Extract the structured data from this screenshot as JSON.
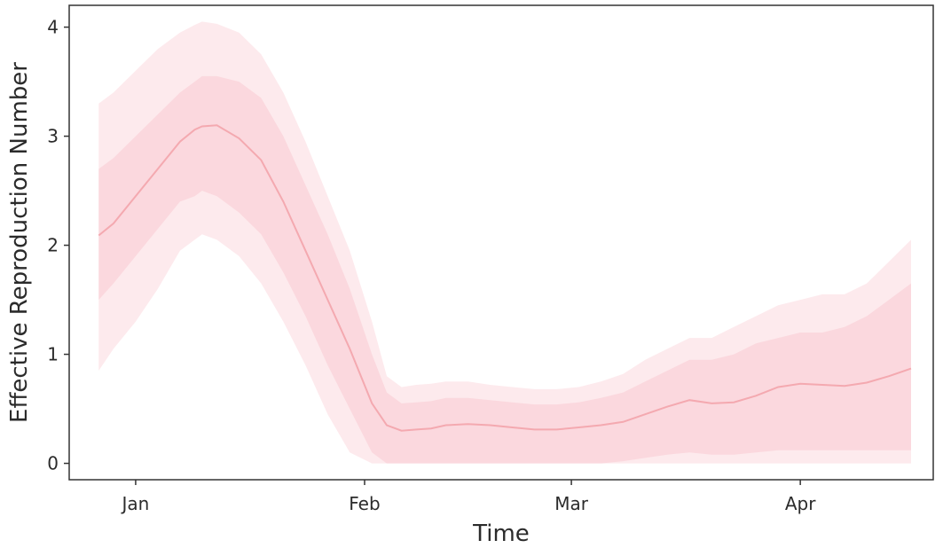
{
  "chart_data": {
    "type": "area",
    "title": "",
    "xlabel": "Time",
    "ylabel": "Effective Reproduction Number",
    "x_ticks": [
      "Jan",
      "Feb",
      "Mar",
      "Apr"
    ],
    "y_ticks": [
      "0",
      "1",
      "2",
      "3",
      "4"
    ],
    "xlim": [
      "2020-12-23",
      "2021-04-19"
    ],
    "ylim": [
      -0.15,
      4.2
    ],
    "grid": false,
    "legend": "none",
    "colors": {
      "line": "#f4a9b0",
      "band": "#f9c4cc"
    },
    "x": [
      "2020-12-27",
      "2020-12-29",
      "2021-01-01",
      "2021-01-04",
      "2021-01-07",
      "2021-01-09",
      "2021-01-10",
      "2021-01-12",
      "2021-01-15",
      "2021-01-18",
      "2021-01-21",
      "2021-01-24",
      "2021-01-27",
      "2021-01-30",
      "2021-02-02",
      "2021-02-04",
      "2021-02-06",
      "2021-02-08",
      "2021-02-10",
      "2021-02-12",
      "2021-02-15",
      "2021-02-18",
      "2021-02-21",
      "2021-02-24",
      "2021-02-27",
      "2021-03-02",
      "2021-03-05",
      "2021-03-08",
      "2021-03-11",
      "2021-03-14",
      "2021-03-17",
      "2021-03-20",
      "2021-03-23",
      "2021-03-26",
      "2021-03-29",
      "2021-04-01",
      "2021-04-04",
      "2021-04-07",
      "2021-04-10",
      "2021-04-13",
      "2021-04-16"
    ],
    "median": [
      2.09,
      2.2,
      2.45,
      2.7,
      2.95,
      3.06,
      3.09,
      3.1,
      2.98,
      2.78,
      2.4,
      1.95,
      1.5,
      1.05,
      0.55,
      0.35,
      0.3,
      0.31,
      0.32,
      0.35,
      0.36,
      0.35,
      0.33,
      0.31,
      0.31,
      0.33,
      0.35,
      0.38,
      0.45,
      0.52,
      0.58,
      0.55,
      0.56,
      0.62,
      0.7,
      0.73,
      0.72,
      0.71,
      0.74,
      0.8,
      0.87
    ],
    "band_50": [
      [
        1.5,
        2.7
      ],
      [
        1.65,
        2.8
      ],
      [
        1.9,
        3.0
      ],
      [
        2.15,
        3.2
      ],
      [
        2.4,
        3.4
      ],
      [
        2.45,
        3.5
      ],
      [
        2.5,
        3.55
      ],
      [
        2.45,
        3.55
      ],
      [
        2.3,
        3.5
      ],
      [
        2.1,
        3.35
      ],
      [
        1.75,
        3.0
      ],
      [
        1.35,
        2.55
      ],
      [
        0.9,
        2.1
      ],
      [
        0.5,
        1.6
      ],
      [
        0.1,
        1.0
      ],
      [
        0.0,
        0.65
      ],
      [
        0.0,
        0.55
      ],
      [
        0.0,
        0.56
      ],
      [
        0.0,
        0.57
      ],
      [
        0.0,
        0.6
      ],
      [
        0.0,
        0.6
      ],
      [
        0.0,
        0.58
      ],
      [
        0.0,
        0.56
      ],
      [
        0.0,
        0.54
      ],
      [
        0.0,
        0.54
      ],
      [
        0.0,
        0.56
      ],
      [
        0.0,
        0.6
      ],
      [
        0.02,
        0.65
      ],
      [
        0.05,
        0.75
      ],
      [
        0.08,
        0.85
      ],
      [
        0.1,
        0.95
      ],
      [
        0.08,
        0.95
      ],
      [
        0.08,
        1.0
      ],
      [
        0.1,
        1.1
      ],
      [
        0.12,
        1.15
      ],
      [
        0.12,
        1.2
      ],
      [
        0.12,
        1.2
      ],
      [
        0.12,
        1.25
      ],
      [
        0.12,
        1.35
      ],
      [
        0.12,
        1.5
      ],
      [
        0.12,
        1.65
      ]
    ],
    "band_95": [
      [
        0.85,
        3.3
      ],
      [
        1.05,
        3.4
      ],
      [
        1.3,
        3.6
      ],
      [
        1.6,
        3.8
      ],
      [
        1.95,
        3.95
      ],
      [
        2.05,
        4.02
      ],
      [
        2.1,
        4.05
      ],
      [
        2.05,
        4.03
      ],
      [
        1.9,
        3.95
      ],
      [
        1.65,
        3.75
      ],
      [
        1.3,
        3.4
      ],
      [
        0.9,
        2.95
      ],
      [
        0.45,
        2.45
      ],
      [
        0.1,
        1.95
      ],
      [
        0.0,
        1.3
      ],
      [
        0.0,
        0.8
      ],
      [
        0.0,
        0.7
      ],
      [
        0.0,
        0.72
      ],
      [
        0.0,
        0.73
      ],
      [
        0.0,
        0.75
      ],
      [
        0.0,
        0.75
      ],
      [
        0.0,
        0.72
      ],
      [
        0.0,
        0.7
      ],
      [
        0.0,
        0.68
      ],
      [
        0.0,
        0.68
      ],
      [
        0.0,
        0.7
      ],
      [
        0.0,
        0.75
      ],
      [
        0.0,
        0.82
      ],
      [
        0.0,
        0.95
      ],
      [
        0.0,
        1.05
      ],
      [
        0.0,
        1.15
      ],
      [
        0.0,
        1.15
      ],
      [
        0.0,
        1.25
      ],
      [
        0.0,
        1.35
      ],
      [
        0.0,
        1.45
      ],
      [
        0.0,
        1.5
      ],
      [
        0.0,
        1.55
      ],
      [
        0.0,
        1.55
      ],
      [
        0.0,
        1.65
      ],
      [
        0.0,
        1.85
      ],
      [
        0.0,
        2.05
      ]
    ]
  }
}
